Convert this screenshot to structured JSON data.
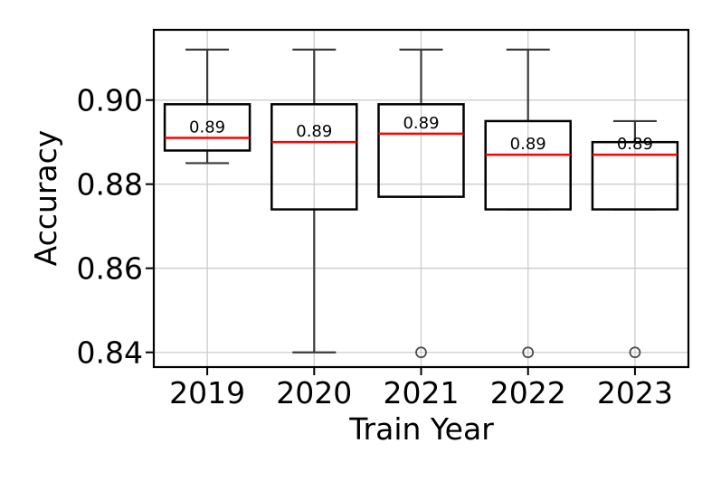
{
  "chart_data": {
    "type": "boxplot",
    "title": "",
    "xlabel": "Train Year",
    "ylabel": "Accuracy",
    "categories": [
      "2019",
      "2020",
      "2021",
      "2022",
      "2023"
    ],
    "y_ticks": [
      0.84,
      0.86,
      0.88,
      0.9
    ],
    "y_tick_labels": [
      "0.84",
      "0.86",
      "0.88",
      "0.90"
    ],
    "ylim": [
      0.8365,
      0.9167
    ],
    "grid": true,
    "legend": "none",
    "series": [
      {
        "category": "2019",
        "whisker_low": 0.885,
        "q1": 0.888,
        "median": 0.891,
        "q3": 0.899,
        "whisker_high": 0.912,
        "outliers": [],
        "median_label": "0.89"
      },
      {
        "category": "2020",
        "whisker_low": 0.84,
        "q1": 0.874,
        "median": 0.89,
        "q3": 0.899,
        "whisker_high": 0.912,
        "outliers": [],
        "median_label": "0.89"
      },
      {
        "category": "2021",
        "whisker_low": 0.877,
        "q1": 0.877,
        "median": 0.892,
        "q3": 0.899,
        "whisker_high": 0.912,
        "outliers": [
          0.84
        ],
        "median_label": "0.89"
      },
      {
        "category": "2022",
        "whisker_low": 0.874,
        "q1": 0.874,
        "median": 0.887,
        "q3": 0.895,
        "whisker_high": 0.912,
        "outliers": [
          0.84
        ],
        "median_label": "0.89"
      },
      {
        "category": "2023",
        "whisker_low": 0.874,
        "q1": 0.874,
        "median": 0.887,
        "q3": 0.89,
        "whisker_high": 0.895,
        "outliers": [
          0.84
        ],
        "median_label": "0.89"
      }
    ],
    "colors": {
      "box_edge": "#000000",
      "whisker": "#3a3a3a",
      "cap": "#3a3a3a",
      "median": "#ff0000",
      "median_label": "#0000ff",
      "grid": "#cccccc",
      "outlier": "#4d4d4d",
      "spine": "#000000",
      "tick": "#000000",
      "background": "#ffffff"
    }
  }
}
